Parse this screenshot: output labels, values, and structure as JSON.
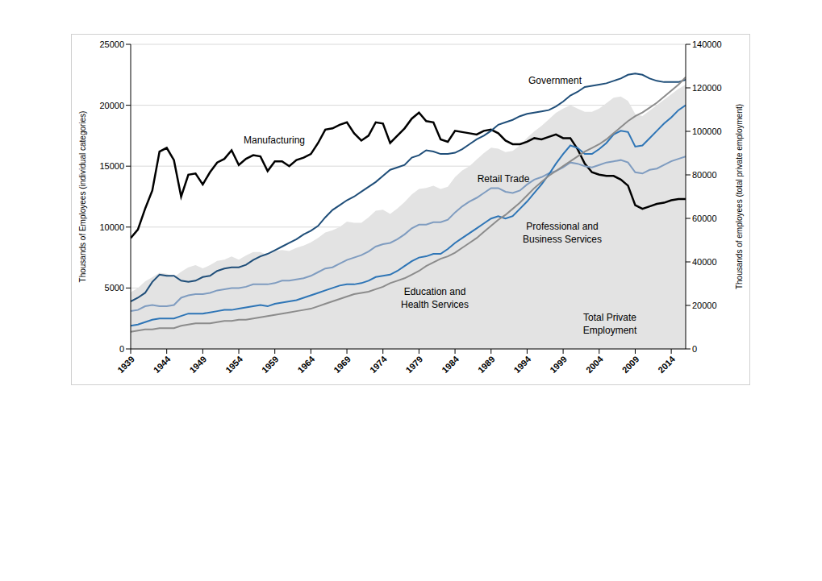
{
  "chart_data": {
    "type": "line",
    "y_label": "Thousands of Employees (individual categories)",
    "y2_label": "Thousands of employees (total private employment)",
    "x": [
      1939,
      1940,
      1941,
      1942,
      1943,
      1944,
      1945,
      1946,
      1947,
      1948,
      1949,
      1950,
      1951,
      1952,
      1953,
      1954,
      1955,
      1956,
      1957,
      1958,
      1959,
      1960,
      1961,
      1962,
      1963,
      1964,
      1965,
      1966,
      1967,
      1968,
      1969,
      1970,
      1971,
      1972,
      1973,
      1974,
      1975,
      1976,
      1977,
      1978,
      1979,
      1980,
      1981,
      1982,
      1983,
      1984,
      1985,
      1986,
      1987,
      1988,
      1989,
      1990,
      1991,
      1992,
      1993,
      1994,
      1995,
      1996,
      1997,
      1998,
      1999,
      2000,
      2001,
      2002,
      2003,
      2004,
      2005,
      2006,
      2007,
      2008,
      2009,
      2010,
      2011,
      2012,
      2013,
      2014,
      2015,
      2016
    ],
    "xlim": [
      1939,
      2016
    ],
    "xticks": [
      1939,
      1944,
      1949,
      1954,
      1959,
      1964,
      1969,
      1974,
      1979,
      1984,
      1989,
      1994,
      1999,
      2004,
      2009,
      2014
    ],
    "ylim": [
      0,
      25000
    ],
    "yticks": [
      0,
      5000,
      10000,
      15000,
      20000,
      25000
    ],
    "y2lim": [
      0,
      140000
    ],
    "y2ticks": [
      0,
      20000,
      40000,
      60000,
      80000,
      100000,
      120000,
      140000
    ],
    "grid": true,
    "series": [
      {
        "name": "Total Private Employment",
        "type": "area",
        "axis": "y2",
        "color": "#e3e3e3",
        "values": [
          26000,
          28000,
          31000,
          33000,
          35000,
          34500,
          33000,
          35500,
          37500,
          38500,
          37000,
          38500,
          40500,
          41000,
          42500,
          41000,
          43000,
          44500,
          44500,
          43000,
          45000,
          45500,
          45000,
          46500,
          47500,
          49000,
          51000,
          53500,
          54500,
          56000,
          58500,
          58000,
          58000,
          60500,
          63500,
          64000,
          62000,
          64500,
          67500,
          71000,
          73500,
          74000,
          75000,
          73500,
          74500,
          79000,
          82000,
          84000,
          87000,
          90000,
          92500,
          92000,
          90500,
          91000,
          93500,
          97000,
          100000,
          102500,
          105500,
          108500,
          110500,
          112000,
          110500,
          109000,
          109000,
          110500,
          113000,
          115500,
          116000,
          114000,
          108000,
          107000,
          109500,
          112000,
          114500,
          117000,
          119500,
          121500
        ]
      },
      {
        "name": "Manufacturing",
        "type": "line",
        "color": "#000000",
        "values": [
          9100,
          9800,
          11500,
          13000,
          16200,
          16500,
          15500,
          12500,
          14300,
          14400,
          13500,
          14500,
          15300,
          15600,
          16300,
          15100,
          15600,
          15900,
          15800,
          14600,
          15400,
          15400,
          15000,
          15500,
          15700,
          16000,
          16900,
          18000,
          18100,
          18400,
          18600,
          17700,
          17100,
          17500,
          18600,
          18500,
          16900,
          17500,
          18100,
          18900,
          19400,
          18700,
          18600,
          17200,
          17000,
          17900,
          17800,
          17700,
          17600,
          17900,
          18000,
          17700,
          17100,
          16800,
          16800,
          17000,
          17300,
          17200,
          17400,
          17600,
          17300,
          17300,
          16400,
          15200,
          14500,
          14300,
          14200,
          14200,
          13900,
          13400,
          11800,
          11500,
          11700,
          11900,
          12000,
          12200,
          12300,
          12300
        ]
      },
      {
        "name": "Government",
        "type": "line",
        "color": "#1f4e79",
        "values": [
          3900,
          4200,
          4600,
          5500,
          6100,
          6000,
          6000,
          5600,
          5500,
          5600,
          5900,
          6000,
          6400,
          6600,
          6700,
          6700,
          6900,
          7300,
          7600,
          7800,
          8100,
          8400,
          8700,
          9000,
          9400,
          9700,
          10100,
          10800,
          11400,
          11800,
          12200,
          12500,
          12900,
          13300,
          13700,
          14200,
          14700,
          14900,
          15100,
          15700,
          15900,
          16300,
          16200,
          16000,
          16000,
          16100,
          16400,
          16800,
          17200,
          17500,
          17900,
          18400,
          18600,
          18800,
          19100,
          19300,
          19400,
          19500,
          19600,
          19900,
          20300,
          20800,
          21100,
          21500,
          21600,
          21700,
          21800,
          22000,
          22200,
          22500,
          22600,
          22500,
          22200,
          22000,
          21900,
          21900,
          21900,
          22100
        ]
      },
      {
        "name": "Retail Trade",
        "type": "line",
        "color": "#7f9cc0",
        "values": [
          3100,
          3200,
          3500,
          3600,
          3500,
          3500,
          3600,
          4200,
          4400,
          4500,
          4500,
          4600,
          4800,
          4900,
          5000,
          5000,
          5100,
          5300,
          5300,
          5300,
          5400,
          5600,
          5600,
          5700,
          5800,
          6000,
          6300,
          6600,
          6700,
          7000,
          7300,
          7500,
          7700,
          8000,
          8400,
          8600,
          8700,
          9000,
          9400,
          9900,
          10200,
          10200,
          10400,
          10400,
          10600,
          11200,
          11700,
          12100,
          12400,
          12800,
          13200,
          13200,
          12900,
          12800,
          13000,
          13500,
          13900,
          14100,
          14400,
          14600,
          14900,
          15300,
          15200,
          15000,
          14900,
          15100,
          15300,
          15400,
          15500,
          15300,
          14500,
          14400,
          14700,
          14800,
          15100,
          15400,
          15600,
          15800
        ]
      },
      {
        "name": "Professional and Business Services",
        "type": "line",
        "color": "#2e75b6",
        "values": [
          1900,
          2000,
          2200,
          2400,
          2500,
          2500,
          2500,
          2700,
          2900,
          2900,
          2900,
          3000,
          3100,
          3200,
          3200,
          3300,
          3400,
          3500,
          3600,
          3500,
          3700,
          3800,
          3900,
          4000,
          4200,
          4400,
          4600,
          4800,
          5000,
          5200,
          5300,
          5300,
          5400,
          5600,
          5900,
          6000,
          6100,
          6400,
          6800,
          7200,
          7500,
          7600,
          7800,
          7800,
          8200,
          8700,
          9100,
          9500,
          9900,
          10300,
          10700,
          10900,
          10700,
          10900,
          11500,
          12100,
          12800,
          13500,
          14300,
          15200,
          16000,
          16700,
          16500,
          16000,
          16000,
          16400,
          16900,
          17600,
          17900,
          17800,
          16600,
          16700,
          17300,
          17900,
          18500,
          19000,
          19600,
          20000
        ]
      },
      {
        "name": "Education and Health Services",
        "type": "line",
        "color": "#8c8c8c",
        "values": [
          1400,
          1500,
          1600,
          1600,
          1700,
          1700,
          1700,
          1900,
          2000,
          2100,
          2100,
          2100,
          2200,
          2300,
          2300,
          2400,
          2400,
          2500,
          2600,
          2700,
          2800,
          2900,
          3000,
          3100,
          3200,
          3300,
          3500,
          3700,
          3900,
          4100,
          4300,
          4500,
          4600,
          4700,
          4900,
          5100,
          5400,
          5600,
          5800,
          6100,
          6400,
          6800,
          7100,
          7400,
          7600,
          7900,
          8300,
          8700,
          9100,
          9600,
          10100,
          10600,
          11000,
          11500,
          12000,
          12600,
          13200,
          13700,
          14200,
          14600,
          15000,
          15400,
          15800,
          16200,
          16500,
          16800,
          17200,
          17700,
          18200,
          18700,
          19100,
          19400,
          19800,
          20200,
          20700,
          21200,
          21700,
          22300
        ]
      }
    ]
  }
}
